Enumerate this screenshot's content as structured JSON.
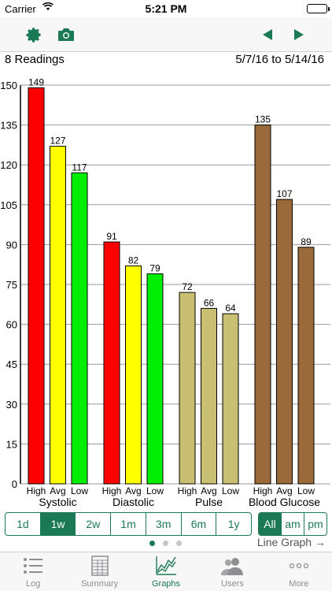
{
  "status_bar": {
    "carrier": "Carrier",
    "time": "5:21 PM"
  },
  "toolbar": {
    "left_icons": [
      "gear-icon",
      "camera-icon"
    ],
    "right_icons": [
      "arrow-left-icon",
      "arrow-right-icon"
    ],
    "accent_color": "#1b7a55"
  },
  "info": {
    "readings": "8 Readings",
    "date_range": "5/7/16 to 5/14/16"
  },
  "chart_data": {
    "type": "bar",
    "groups": [
      {
        "name": "Systolic",
        "categories": [
          "High",
          "Avg",
          "Low"
        ],
        "values": [
          149,
          127,
          117
        ],
        "colors": [
          "#ff0000",
          "#ffff00",
          "#00ee00"
        ]
      },
      {
        "name": "Diastolic",
        "categories": [
          "High",
          "Avg",
          "Low"
        ],
        "values": [
          91,
          82,
          79
        ],
        "colors": [
          "#ff0000",
          "#ffff00",
          "#00ee00"
        ]
      },
      {
        "name": "Pulse",
        "categories": [
          "High",
          "Avg",
          "Low"
        ],
        "values": [
          72,
          66,
          64
        ],
        "colors": [
          "#c8bf72",
          "#c8bf72",
          "#c8bf72"
        ]
      },
      {
        "name": "Blood Glucose",
        "categories": [
          "High",
          "Avg",
          "Low"
        ],
        "values": [
          135,
          107,
          89
        ],
        "colors": [
          "#9a6a3a",
          "#9a6a3a",
          "#9a6a3a"
        ]
      }
    ],
    "ylim": [
      0,
      150
    ],
    "yticks": [
      0,
      15,
      30,
      45,
      60,
      75,
      90,
      105,
      120,
      135,
      150
    ],
    "grid": true
  },
  "range_selector": {
    "options": [
      "1d",
      "1w",
      "2w",
      "1m",
      "3m",
      "6m",
      "1y"
    ],
    "selected": "1w"
  },
  "time_selector": {
    "options": [
      "All",
      "am",
      "pm"
    ],
    "selected": "All"
  },
  "pager": {
    "count": 3,
    "active": 0
  },
  "line_graph_link": "Line Graph →",
  "tabs": [
    {
      "label": "Log",
      "icon": "list-icon"
    },
    {
      "label": "Summary",
      "icon": "table-icon"
    },
    {
      "label": "Graphs",
      "icon": "graph-icon",
      "active": true
    },
    {
      "label": "Users",
      "icon": "users-icon"
    },
    {
      "label": "More",
      "icon": "more-icon"
    }
  ]
}
